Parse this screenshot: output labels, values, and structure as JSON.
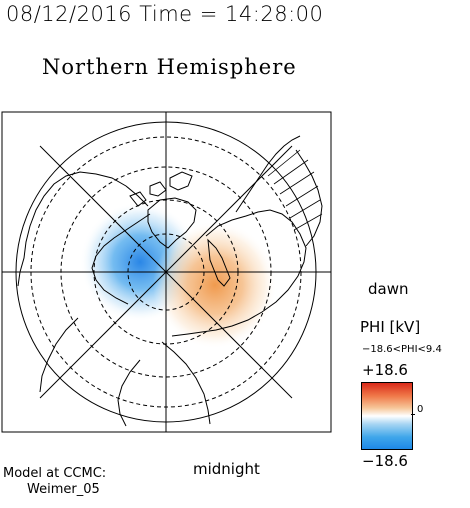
{
  "header": {
    "datetime": "08/12/2016 Time = 14:28:00",
    "title": "Northern Hemisphere"
  },
  "map": {
    "labels": {
      "dawn": "dawn",
      "midnight": "midnight"
    },
    "potential_cells": [
      {
        "sign": "negative",
        "sector": "dusk-noon",
        "color": "#2e8fe8"
      },
      {
        "sign": "positive",
        "sector": "dawn-midnight",
        "color": "#f2a45c"
      }
    ]
  },
  "colorbar": {
    "quantity": "PHI [kV]",
    "range_text": "−18.6<PHI<9.4",
    "max_label": "+18.6",
    "zero_label": "0",
    "min_label": "−18.6",
    "max_value": 18.6,
    "min_value": -18.6,
    "colors": {
      "max": "#d92a1a",
      "zero": "#ffffff",
      "min": "#1e88e6"
    }
  },
  "footer": {
    "line1": "Model at CCMC:",
    "line2": "Weimer_05"
  }
}
